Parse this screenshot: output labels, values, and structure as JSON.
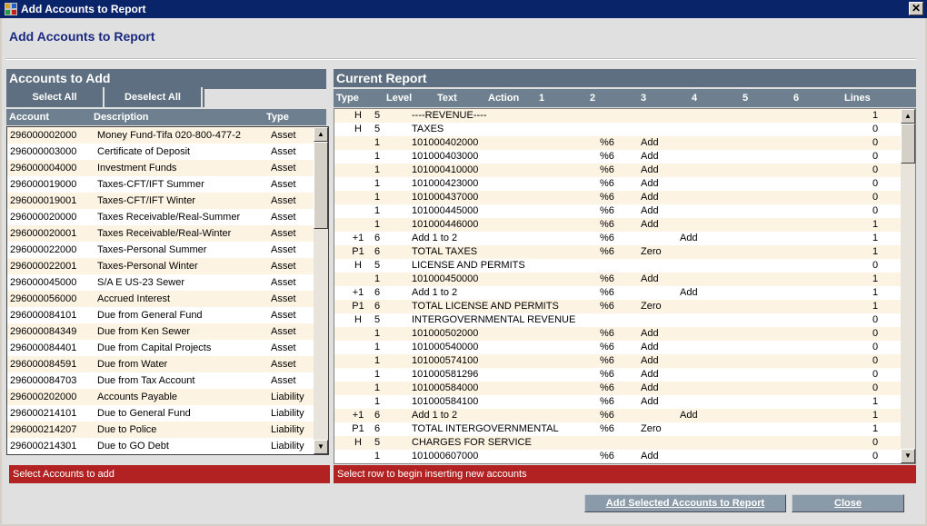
{
  "window": {
    "title": "Add Accounts to Report",
    "close_glyph": "✕"
  },
  "header": {
    "title": "Add Accounts to Report"
  },
  "left": {
    "panel_title": "Accounts to Add",
    "select_all": "Select All",
    "deselect_all": "Deselect All",
    "columns": [
      "Account",
      "Description",
      "Type"
    ],
    "status": "Select Accounts to add",
    "rows": [
      [
        "296000002000",
        "Money Fund-Tifa 020-800-477-2",
        "Asset"
      ],
      [
        "296000003000",
        "Certificate of Deposit",
        "Asset"
      ],
      [
        "296000004000",
        "Investment Funds",
        "Asset"
      ],
      [
        "296000019000",
        "Taxes-CFT/IFT Summer",
        "Asset"
      ],
      [
        "296000019001",
        "Taxes-CFT/IFT Winter",
        "Asset"
      ],
      [
        "296000020000",
        "Taxes Receivable/Real-Summer",
        "Asset"
      ],
      [
        "296000020001",
        "Taxes Receivable/Real-Winter",
        "Asset"
      ],
      [
        "296000022000",
        "Taxes-Personal Summer",
        "Asset"
      ],
      [
        "296000022001",
        "Taxes-Personal Winter",
        "Asset"
      ],
      [
        "296000045000",
        "S/A E US-23 Sewer",
        "Asset"
      ],
      [
        "296000056000",
        "Accrued Interest",
        "Asset"
      ],
      [
        "296000084101",
        "Due from General Fund",
        "Asset"
      ],
      [
        "296000084349",
        "Due from Ken Sewer",
        "Asset"
      ],
      [
        "296000084401",
        "Due from Capital Projects",
        "Asset"
      ],
      [
        "296000084591",
        "Due from Water",
        "Asset"
      ],
      [
        "296000084703",
        "Due from Tax Account",
        "Asset"
      ],
      [
        "296000202000",
        "Accounts Payable",
        "Liability"
      ],
      [
        "296000214101",
        "Due to General Fund",
        "Liability"
      ],
      [
        "296000214207",
        "Due to Police",
        "Liability"
      ],
      [
        "296000214301",
        "Due to GO Debt",
        "Liability"
      ]
    ]
  },
  "right": {
    "panel_title": "Current Report",
    "columns": [
      "Type",
      "Level",
      "Text",
      "Action",
      "1",
      "2",
      "3",
      "4",
      "5",
      "6",
      "Lines"
    ],
    "status": "Select row to begin inserting new accounts",
    "rows": [
      [
        "H",
        "5",
        "----REVENUE----",
        "",
        "",
        "",
        "",
        "1"
      ],
      [
        "H",
        "5",
        "TAXES",
        "",
        "",
        "",
        "",
        "0"
      ],
      [
        "",
        "1",
        "101000402000",
        "%6",
        "Add",
        "",
        "",
        "0"
      ],
      [
        "",
        "1",
        "101000403000",
        "%6",
        "Add",
        "",
        "",
        "0"
      ],
      [
        "",
        "1",
        "101000410000",
        "%6",
        "Add",
        "",
        "",
        "0"
      ],
      [
        "",
        "1",
        "101000423000",
        "%6",
        "Add",
        "",
        "",
        "0"
      ],
      [
        "",
        "1",
        "101000437000",
        "%6",
        "Add",
        "",
        "",
        "0"
      ],
      [
        "",
        "1",
        "101000445000",
        "%6",
        "Add",
        "",
        "",
        "0"
      ],
      [
        "",
        "1",
        "101000446000",
        "%6",
        "Add",
        "",
        "",
        "1"
      ],
      [
        "+1",
        "6",
        "Add 1 to   2",
        "%6",
        "",
        "Add",
        "",
        "1"
      ],
      [
        "P1",
        "6",
        "TOTAL TAXES",
        "%6",
        "Zero",
        "",
        "",
        "1"
      ],
      [
        "H",
        "5",
        "LICENSE AND PERMITS",
        "",
        "",
        "",
        "",
        "0"
      ],
      [
        "",
        "1",
        "101000450000",
        "%6",
        "Add",
        "",
        "",
        "1"
      ],
      [
        "+1",
        "6",
        "Add 1 to   2",
        "%6",
        "",
        "Add",
        "",
        "1"
      ],
      [
        "P1",
        "6",
        "TOTAL LICENSE AND PERMITS",
        "%6",
        "Zero",
        "",
        "",
        "1"
      ],
      [
        "H",
        "5",
        "INTERGOVERNMENTAL REVENUE",
        "",
        "",
        "",
        "",
        "0"
      ],
      [
        "",
        "1",
        "101000502000",
        "%6",
        "Add",
        "",
        "",
        "0"
      ],
      [
        "",
        "1",
        "101000540000",
        "%6",
        "Add",
        "",
        "",
        "0"
      ],
      [
        "",
        "1",
        "101000574100",
        "%6",
        "Add",
        "",
        "",
        "0"
      ],
      [
        "",
        "1",
        "101000581296",
        "%6",
        "Add",
        "",
        "",
        "0"
      ],
      [
        "",
        "1",
        "101000584000",
        "%6",
        "Add",
        "",
        "",
        "0"
      ],
      [
        "",
        "1",
        "101000584100",
        "%6",
        "Add",
        "",
        "",
        "1"
      ],
      [
        "+1",
        "6",
        "Add 1 to   2",
        "%6",
        "",
        "Add",
        "",
        "1"
      ],
      [
        "P1",
        "6",
        "TOTAL INTERGOVERNMENTAL",
        "%6",
        "Zero",
        "",
        "",
        "1"
      ],
      [
        "H",
        "5",
        "CHARGES FOR SERVICE",
        "",
        "",
        "",
        "",
        "0"
      ],
      [
        "",
        "1",
        "101000607000",
        "%6",
        "Add",
        "",
        "",
        "0"
      ]
    ]
  },
  "footer": {
    "add_button": "Add Selected Accounts to Report",
    "close_button": "Close"
  },
  "icons": {
    "scroll_up": "▲",
    "scroll_down": "▼"
  },
  "colors": {
    "title_bar": "#0a246a",
    "panel_header": "#5d6f80",
    "status_bar": "#b22222",
    "row_alt": "#fdf3e3"
  }
}
